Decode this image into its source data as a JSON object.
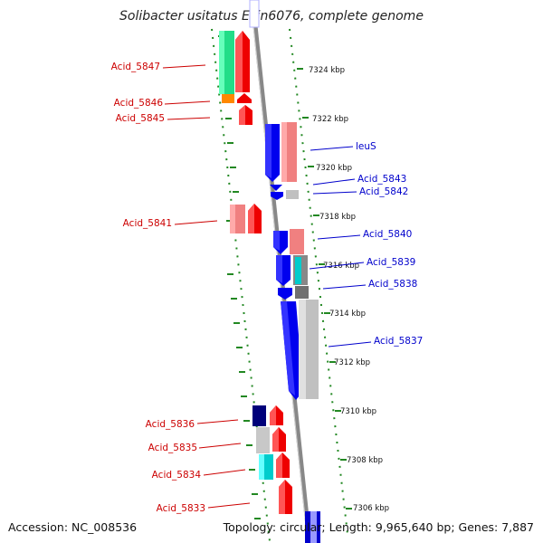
{
  "title": "Solibacter usitatus Ellin6076, complete genome",
  "footer": {
    "accession": "Accession: NC_008536",
    "summary": "Topology: circular; Length: 9,965,640 bp; Genes: 7,887"
  },
  "colors": {
    "forward_strand": "#ee0000",
    "reverse_strand": "#0000ee",
    "left_label": "#cc0000",
    "right_label": "#0000cc",
    "axis": "#888888",
    "ruler": "#228822"
  },
  "scale_labels": [
    "7324 kbp",
    "7322 kbp",
    "7320 kbp",
    "7318 kbp",
    "7316 kbp",
    "7314 kbp",
    "7312 kbp",
    "7310 kbp",
    "7308 kbp",
    "7306 kbp"
  ],
  "genes_left": [
    "Acid_5847",
    "Acid_5846",
    "Acid_5845",
    "Acid_5841",
    "Acid_5836",
    "Acid_5835",
    "Acid_5834",
    "Acid_5833"
  ],
  "genes_right": [
    "leuS",
    "Acid_5843",
    "Acid_5842",
    "Acid_5840",
    "Acid_5839",
    "Acid_5838",
    "Acid_5837"
  ]
}
